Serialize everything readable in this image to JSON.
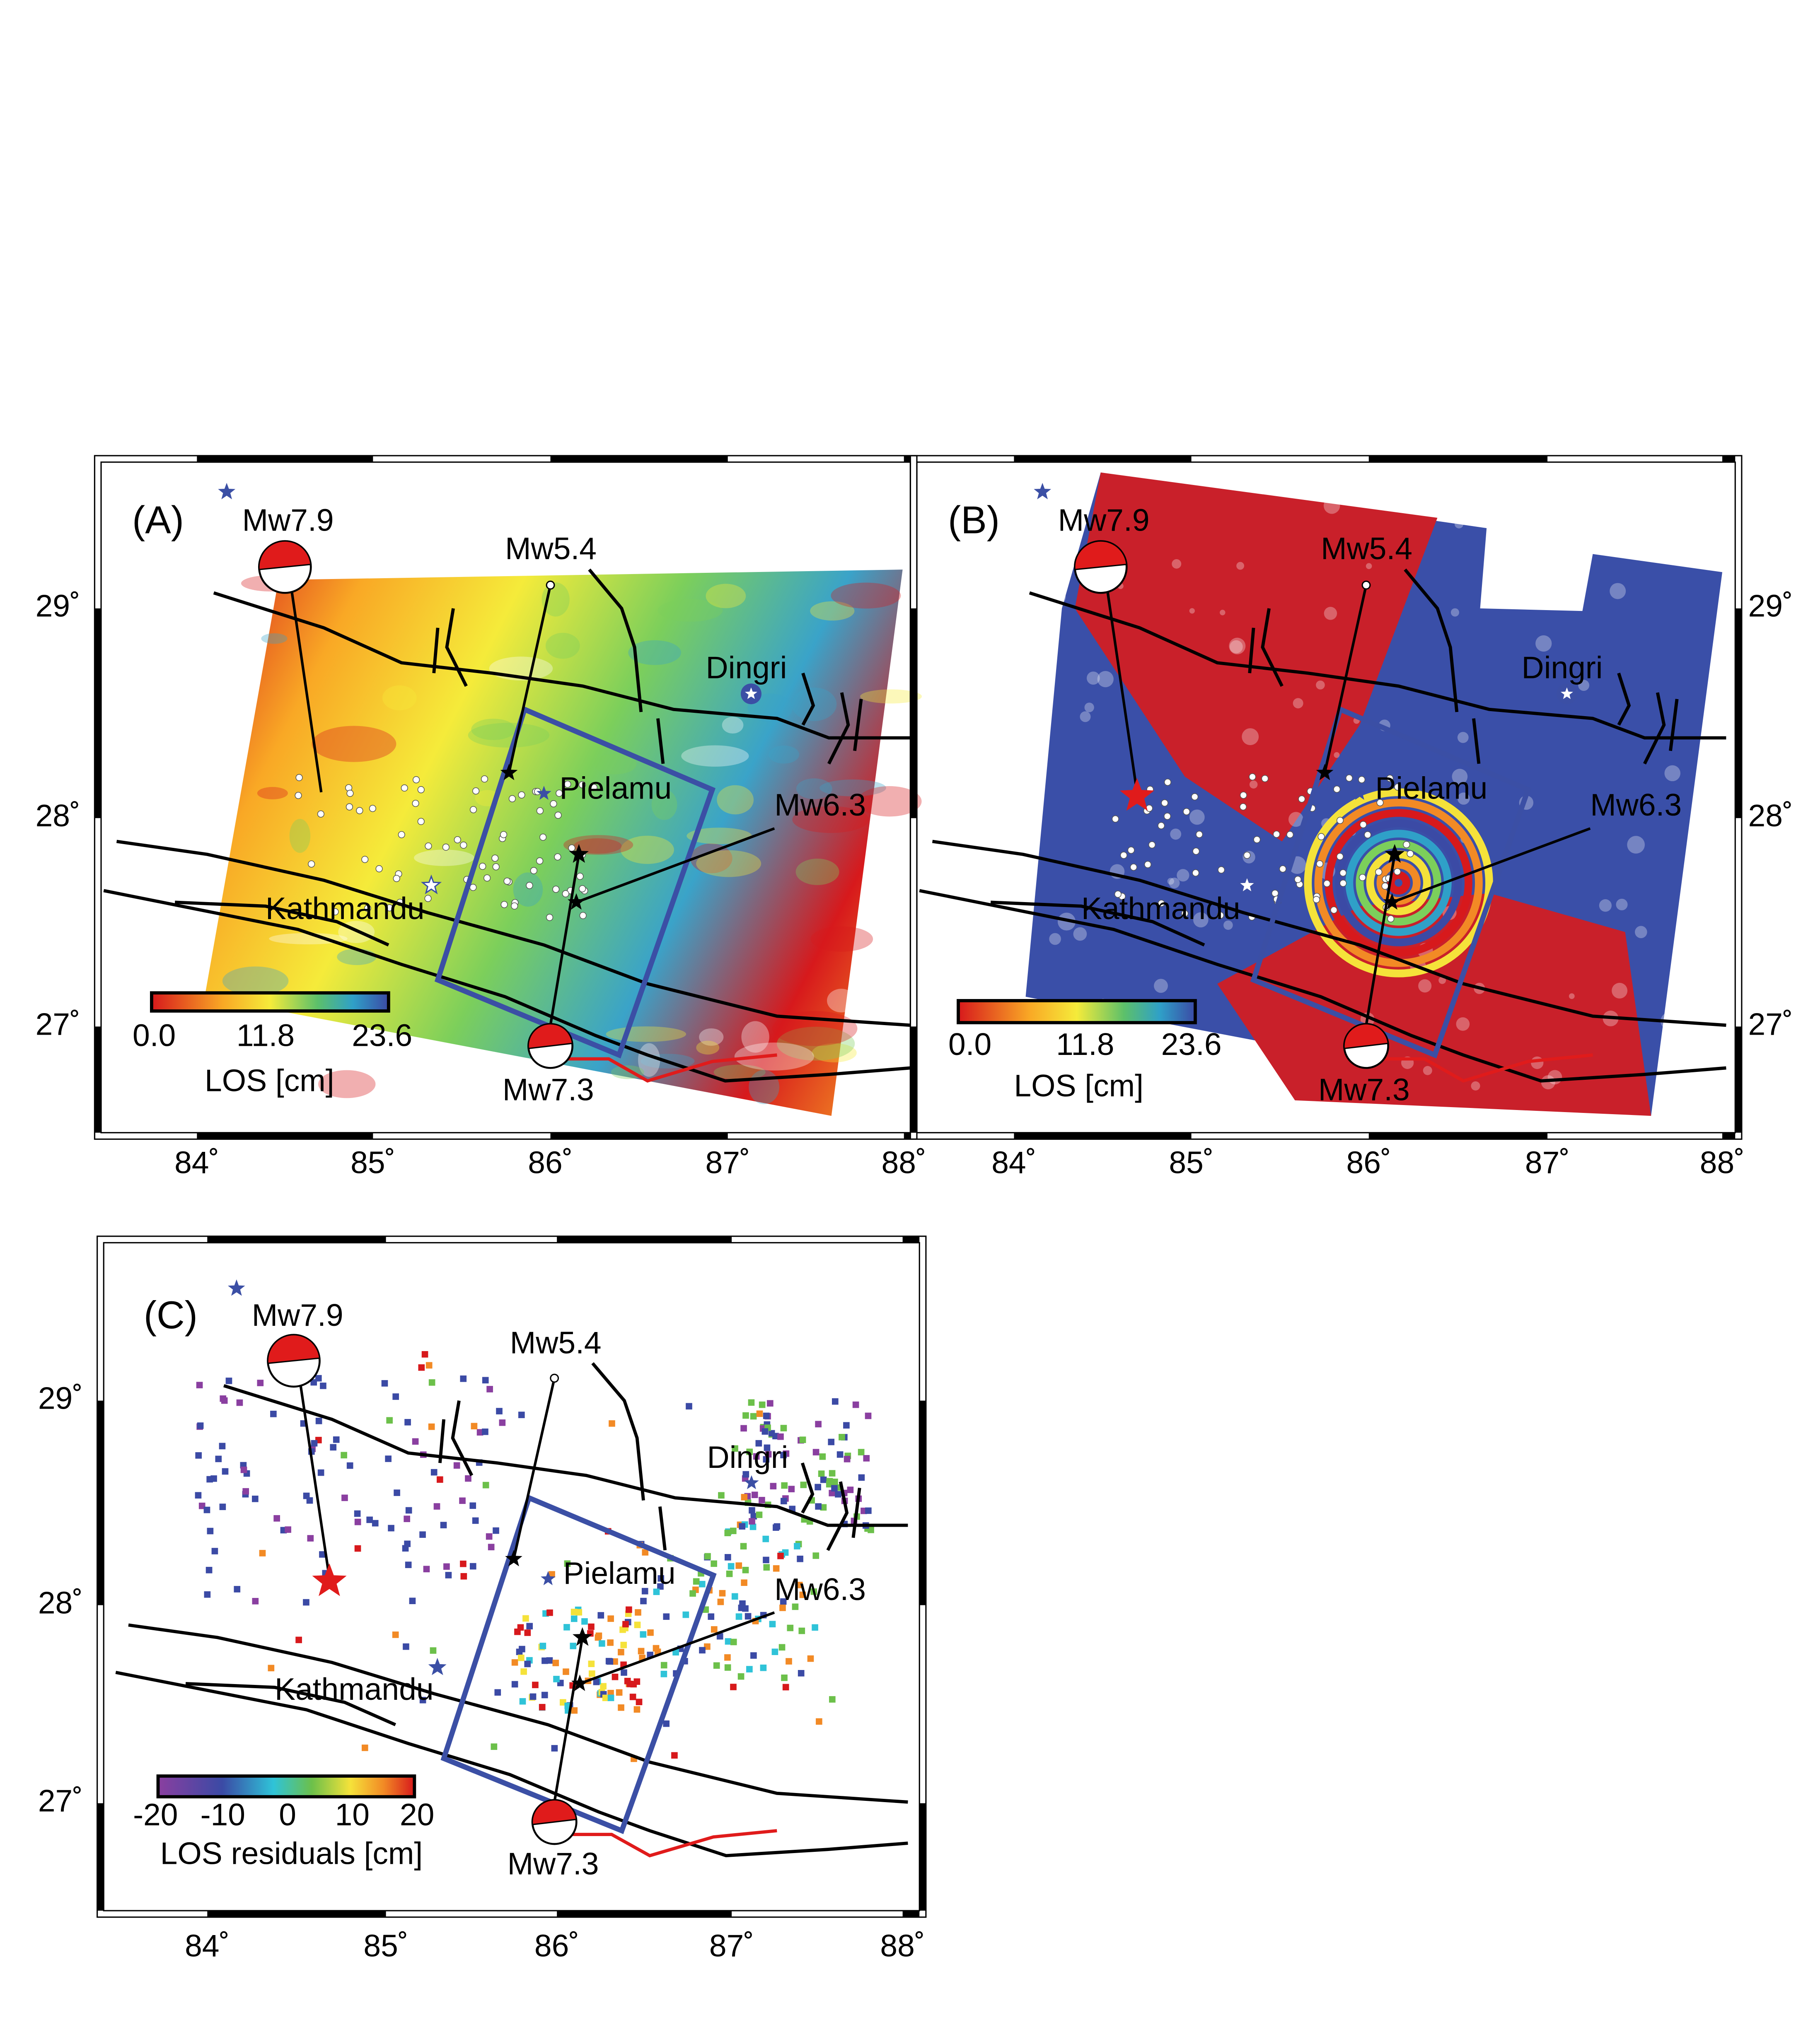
{
  "panels": [
    {
      "label": "(A)",
      "events": [
        "Mw7.9",
        "Mw5.4",
        "Mw6.3",
        "Mw7.3"
      ],
      "places": [
        "Dingri",
        "Pielamu",
        "Kathmandu"
      ],
      "colorbar": {
        "ticks": [
          "0.0",
          "11.8",
          "23.6"
        ],
        "title": "LOS [cm]"
      },
      "lon_ticks": [
        "84˚",
        "85˚",
        "86˚",
        "87˚",
        "88˚"
      ],
      "lat_ticks": [
        "29˚",
        "28˚",
        "27˚"
      ]
    },
    {
      "label": "(B)",
      "events": [
        "Mw7.9",
        "Mw5.4",
        "Mw6.3",
        "Mw7.3"
      ],
      "places": [
        "Dingri",
        "Pielamu",
        "Kathmandu"
      ],
      "colorbar": {
        "ticks": [
          "0.0",
          "11.8",
          "23.6"
        ],
        "title": "LOS [cm]"
      },
      "lon_ticks": [
        "84˚",
        "85˚",
        "86˚",
        "87˚",
        "88˚"
      ],
      "lat_ticks": [
        "29˚",
        "28˚",
        "27˚"
      ]
    },
    {
      "label": "(C)",
      "events": [
        "Mw7.9",
        "Mw5.4",
        "Mw6.3",
        "Mw7.3"
      ],
      "places": [
        "Dingri",
        "Pielamu",
        "Kathmandu"
      ],
      "colorbar": {
        "ticks": [
          "-20",
          "-10",
          "0",
          "10",
          "20"
        ],
        "title": "LOS residuals [cm]"
      },
      "lon_ticks": [
        "84˚",
        "85˚",
        "86˚",
        "87˚",
        "88˚"
      ],
      "lat_ticks": [
        "29˚",
        "28˚",
        "27˚"
      ]
    }
  ]
}
